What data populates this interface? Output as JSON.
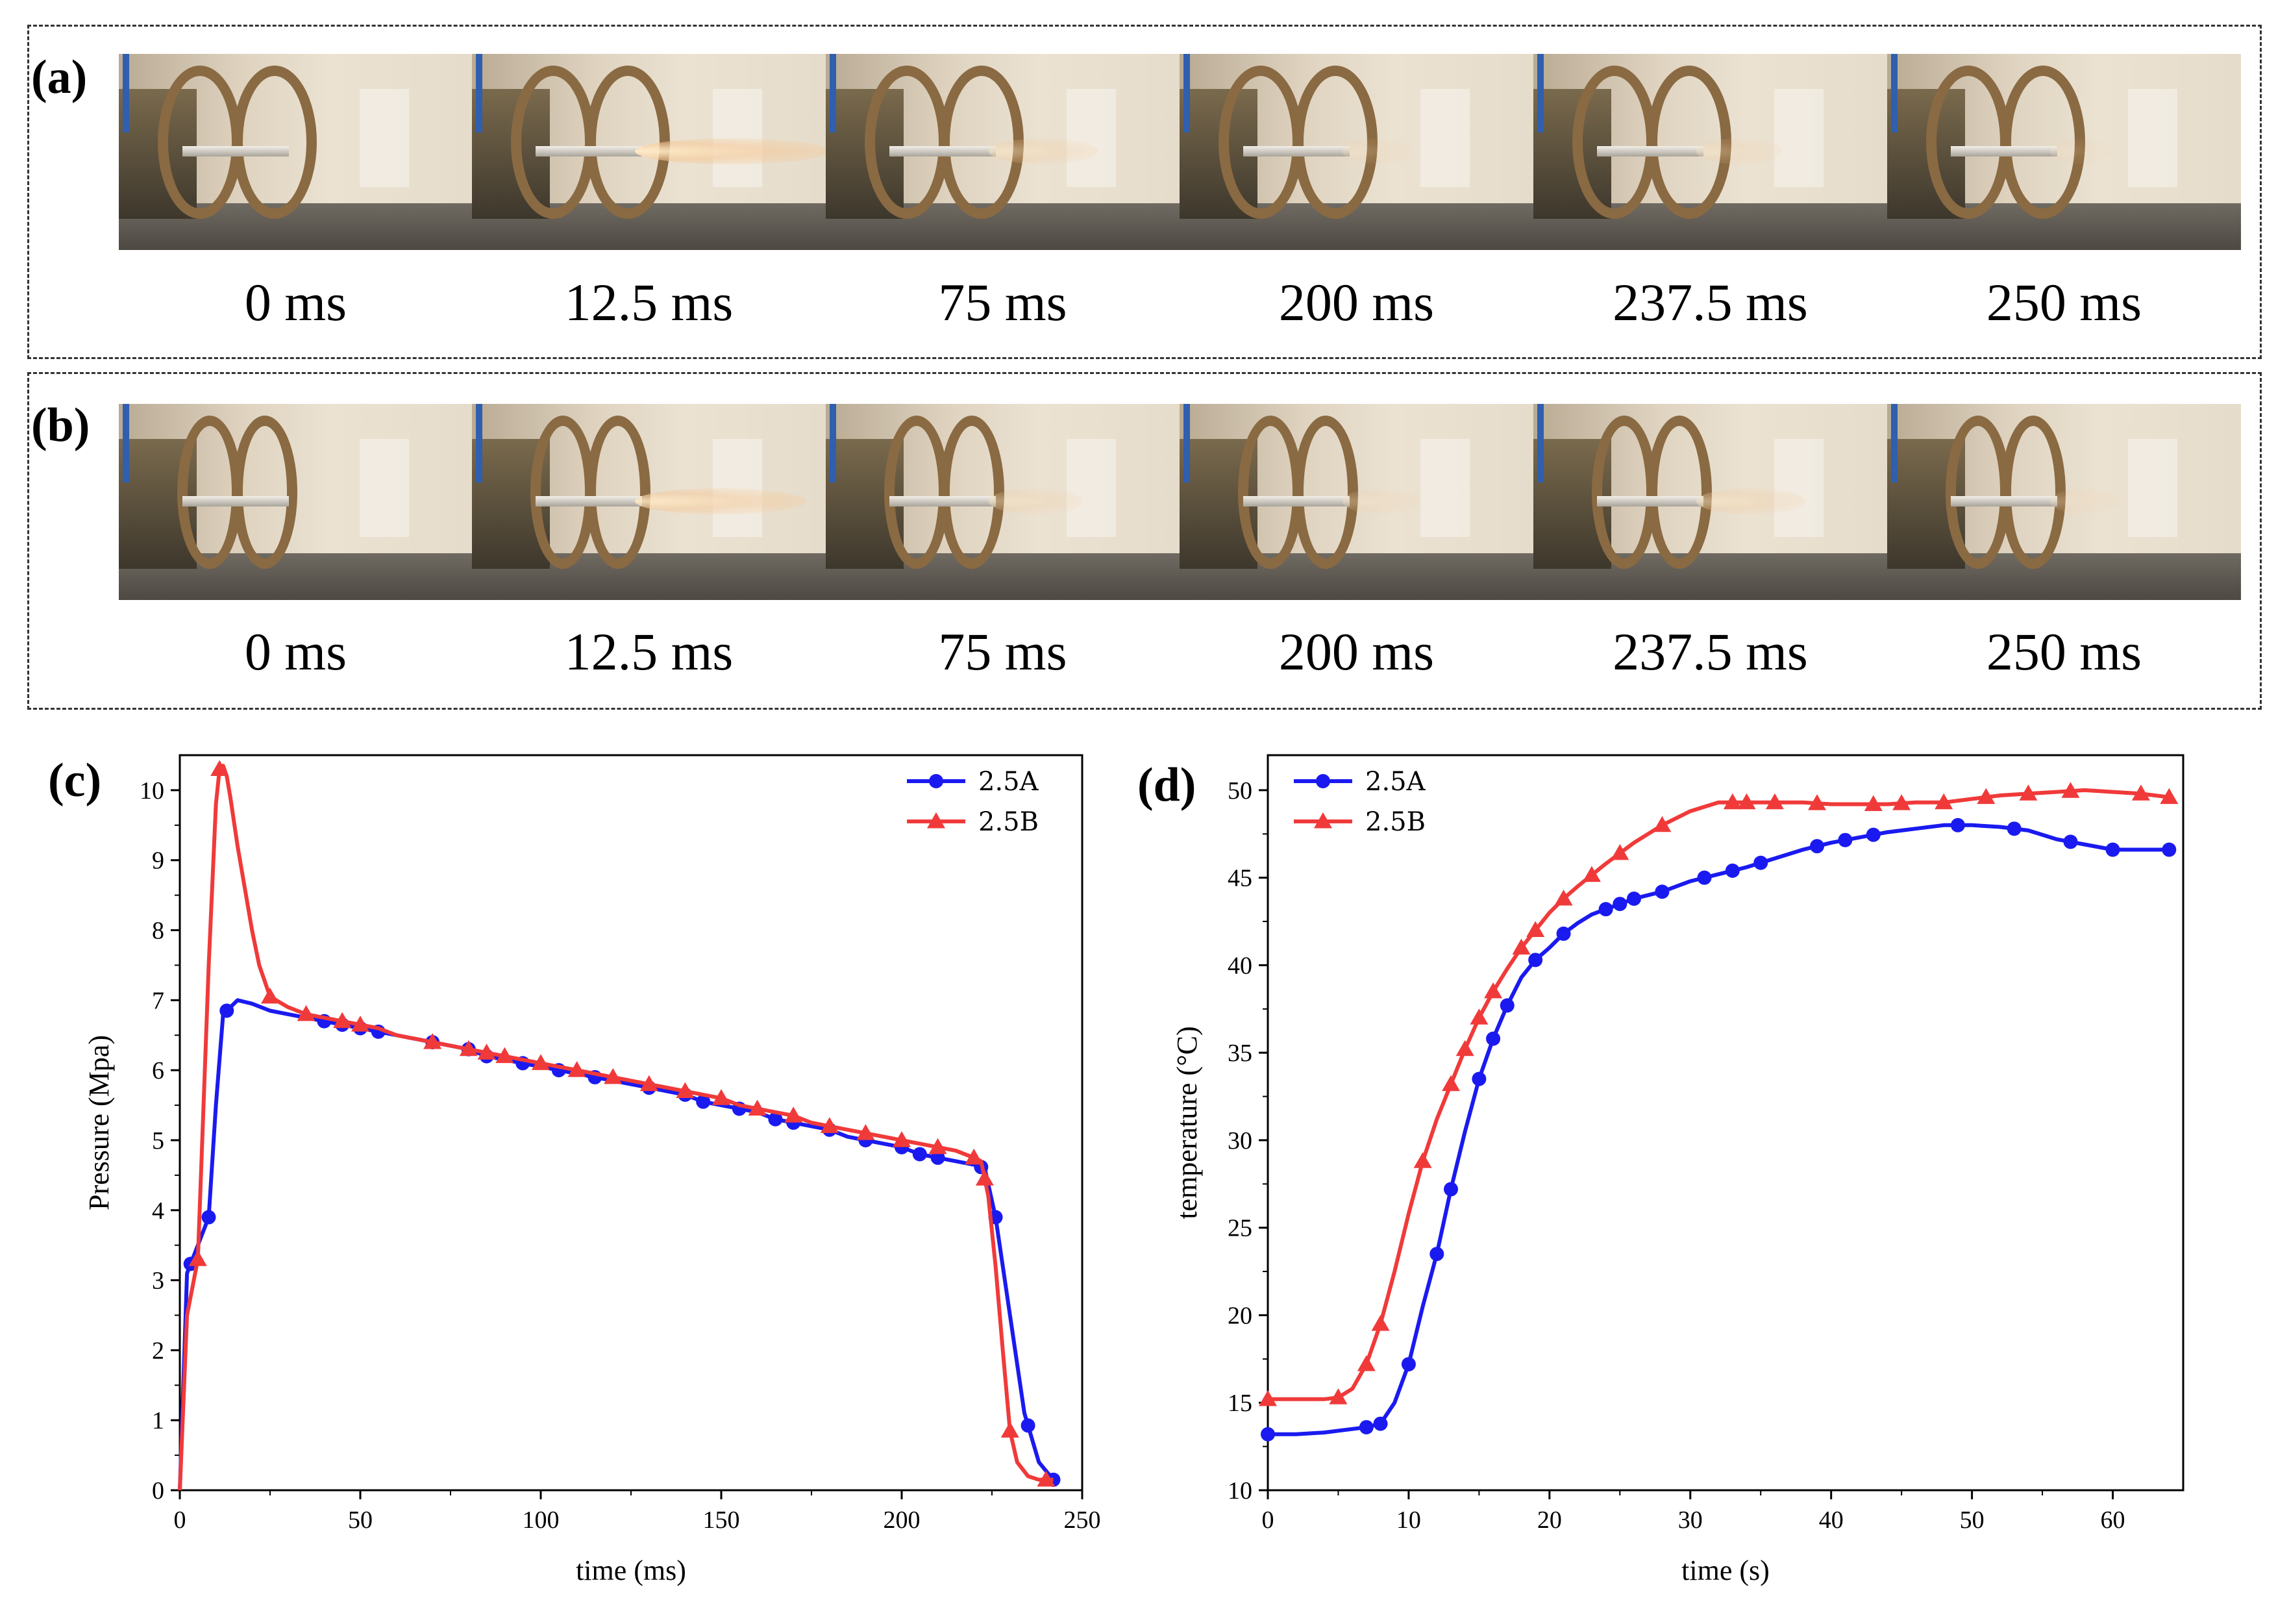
{
  "panels": {
    "a": {
      "label": "(a)",
      "captions": [
        "0 ms",
        "12.5 ms",
        "75 ms",
        "200 ms",
        "237.5 ms",
        "250 ms"
      ],
      "plume": [
        0,
        1.0,
        0.45,
        0.2,
        0.3,
        0.15
      ]
    },
    "b": {
      "label": "(b)",
      "captions": [
        "0 ms",
        "12.5 ms",
        "75 ms",
        "200 ms",
        "237.5 ms",
        "250 ms"
      ],
      "plume": [
        0,
        0.85,
        0.35,
        0.25,
        0.45,
        0.2
      ]
    }
  },
  "colors": {
    "series_a": "#1a1af0",
    "series_b": "#f03a3a",
    "photo_pole": "#2f5fae"
  },
  "chart_data": [
    {
      "id": "c",
      "label": "(c)",
      "type": "line",
      "xlabel": "time (ms)",
      "ylabel": "Pressure (Mpa)",
      "xlim": [
        0,
        250
      ],
      "ylim": [
        0,
        10.5
      ],
      "xticks": [
        0,
        50,
        100,
        150,
        200,
        250
      ],
      "yticks": [
        0,
        1,
        2,
        3,
        4,
        5,
        6,
        7,
        8,
        9,
        10
      ],
      "legend_position": "top-right",
      "series": [
        {
          "name": "2.5A",
          "marker": "circle",
          "color": "#1a1af0",
          "x": [
            0,
            2,
            5,
            8,
            10,
            12,
            14,
            16,
            20,
            25,
            30,
            35,
            40,
            45,
            50,
            55,
            60,
            65,
            70,
            75,
            80,
            85,
            90,
            95,
            100,
            105,
            110,
            115,
            120,
            125,
            130,
            135,
            140,
            145,
            150,
            155,
            160,
            165,
            170,
            175,
            180,
            185,
            190,
            195,
            200,
            205,
            210,
            215,
            220,
            223,
            226,
            230,
            234,
            238,
            242
          ],
          "y": [
            0,
            3.1,
            3.5,
            3.9,
            5.5,
            6.8,
            6.9,
            7.0,
            6.95,
            6.85,
            6.8,
            6.75,
            6.7,
            6.65,
            6.6,
            6.55,
            6.5,
            6.45,
            6.4,
            6.35,
            6.3,
            6.2,
            6.15,
            6.1,
            6.05,
            6.0,
            5.95,
            5.9,
            5.85,
            5.8,
            5.75,
            5.7,
            5.65,
            5.55,
            5.5,
            5.45,
            5.4,
            5.3,
            5.25,
            5.2,
            5.15,
            5.05,
            5.0,
            4.95,
            4.9,
            4.8,
            4.75,
            4.7,
            4.65,
            4.6,
            3.9,
            2.5,
            1.1,
            0.4,
            0.15
          ],
          "marker_x": [
            3,
            8,
            13,
            40,
            45,
            50,
            55,
            70,
            80,
            85,
            95,
            105,
            115,
            130,
            140,
            145,
            155,
            165,
            170,
            180,
            190,
            200,
            205,
            210,
            222,
            226,
            235,
            242
          ]
        },
        {
          "name": "2.5B",
          "marker": "triangle",
          "color": "#f03a3a",
          "x": [
            0,
            2,
            5,
            8,
            10,
            11,
            12,
            13,
            14,
            16,
            18,
            20,
            22,
            25,
            30,
            35,
            40,
            45,
            50,
            55,
            60,
            65,
            70,
            75,
            80,
            85,
            90,
            95,
            100,
            105,
            110,
            115,
            120,
            125,
            130,
            135,
            140,
            145,
            150,
            155,
            160,
            165,
            170,
            175,
            180,
            185,
            190,
            195,
            200,
            205,
            210,
            215,
            220,
            222,
            224,
            226,
            228,
            230,
            232,
            235,
            238,
            242
          ],
          "y": [
            0,
            2.5,
            3.3,
            7.5,
            9.8,
            10.3,
            10.35,
            10.2,
            9.9,
            9.2,
            8.6,
            8.0,
            7.5,
            7.05,
            6.9,
            6.8,
            6.75,
            6.7,
            6.65,
            6.6,
            6.5,
            6.45,
            6.4,
            6.35,
            6.3,
            6.25,
            6.2,
            6.15,
            6.1,
            6.05,
            6.0,
            5.95,
            5.9,
            5.85,
            5.8,
            5.75,
            5.7,
            5.65,
            5.6,
            5.5,
            5.45,
            5.4,
            5.35,
            5.25,
            5.2,
            5.15,
            5.1,
            5.05,
            5.0,
            4.95,
            4.9,
            4.85,
            4.75,
            4.7,
            4.2,
            3.2,
            2.0,
            0.85,
            0.4,
            0.2,
            0.15,
            0.15
          ],
          "marker_x": [
            5,
            11,
            25,
            35,
            45,
            50,
            70,
            80,
            85,
            90,
            100,
            110,
            120,
            130,
            140,
            150,
            160,
            170,
            180,
            190,
            200,
            210,
            220,
            223,
            230,
            240
          ]
        }
      ]
    },
    {
      "id": "d",
      "label": "(d)",
      "type": "line",
      "xlabel": "time (s)",
      "ylabel": "temperature (°C)",
      "xlim": [
        0,
        65
      ],
      "ylim": [
        10,
        52
      ],
      "xticks": [
        0,
        10,
        20,
        30,
        40,
        50,
        60
      ],
      "yticks": [
        10,
        15,
        20,
        25,
        30,
        35,
        40,
        45,
        50
      ],
      "legend_position": "top-left",
      "series": [
        {
          "name": "2.5A",
          "marker": "circle",
          "color": "#1a1af0",
          "x": [
            0,
            2,
            4,
            6,
            7,
            8,
            9,
            10,
            11,
            12,
            13,
            14,
            15,
            16,
            17,
            18,
            19,
            20,
            21,
            22,
            23,
            24,
            25,
            26,
            28,
            30,
            32,
            34,
            36,
            38,
            40,
            42,
            44,
            46,
            48,
            50,
            52,
            54,
            56,
            58,
            60,
            62,
            64
          ],
          "y": [
            13.2,
            13.2,
            13.3,
            13.5,
            13.6,
            13.8,
            15.0,
            17.2,
            20.5,
            23.5,
            27.2,
            30.5,
            33.5,
            35.8,
            37.7,
            39.3,
            40.3,
            41.0,
            41.8,
            42.4,
            42.9,
            43.2,
            43.5,
            43.8,
            44.2,
            44.8,
            45.2,
            45.6,
            46.1,
            46.6,
            47.0,
            47.3,
            47.6,
            47.8,
            48.0,
            48.0,
            47.9,
            47.7,
            47.2,
            46.9,
            46.6,
            46.6,
            46.6
          ],
          "marker_x": [
            0,
            7,
            8,
            10,
            12,
            13,
            15,
            16,
            17,
            19,
            21,
            24,
            25,
            26,
            28,
            31,
            33,
            35,
            39,
            41,
            43,
            49,
            53,
            57,
            60,
            64
          ]
        },
        {
          "name": "2.5B",
          "marker": "triangle",
          "color": "#f03a3a",
          "x": [
            0,
            2,
            4,
            5,
            6,
            7,
            8,
            9,
            10,
            11,
            12,
            13,
            14,
            15,
            16,
            17,
            18,
            19,
            20,
            21,
            22,
            24,
            26,
            28,
            30,
            32,
            34,
            36,
            38,
            40,
            42,
            44,
            46,
            48,
            50,
            52,
            54,
            56,
            58,
            60,
            62,
            64
          ],
          "y": [
            15.2,
            15.2,
            15.2,
            15.3,
            15.8,
            17.2,
            19.5,
            22.5,
            25.8,
            28.8,
            31.2,
            33.2,
            35.2,
            37.0,
            38.5,
            39.8,
            41.0,
            42.0,
            43.0,
            43.8,
            44.5,
            45.8,
            47.0,
            48.0,
            48.8,
            49.3,
            49.3,
            49.3,
            49.3,
            49.2,
            49.2,
            49.2,
            49.3,
            49.3,
            49.5,
            49.7,
            49.8,
            49.9,
            50.0,
            49.9,
            49.8,
            49.6
          ],
          "marker_x": [
            0,
            5,
            7,
            8,
            11,
            13,
            14,
            15,
            16,
            18,
            19,
            21,
            23,
            25,
            28,
            33,
            34,
            36,
            39,
            43,
            45,
            48,
            51,
            54,
            57,
            62,
            64
          ]
        }
      ]
    }
  ]
}
